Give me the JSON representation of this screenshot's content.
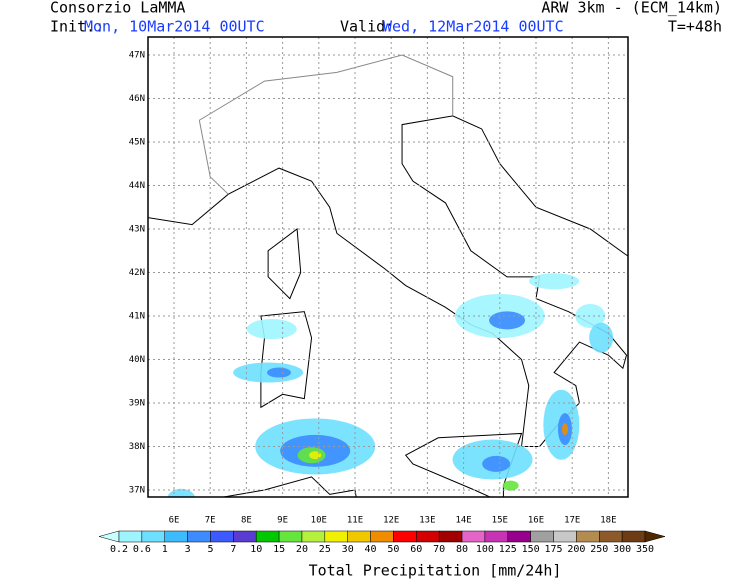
{
  "header": {
    "title": "Consorzio LaMMA",
    "init_label": "Init.:",
    "init_time": "Mon, 10Mar2014 00UTC",
    "valid_label": "Valid:",
    "valid_time": "Wed, 12Mar2014 00UTC",
    "model": "ARW 3km - (ECM_14km)",
    "lead_time": "T=+48h"
  },
  "map": {
    "lat_ticks": [
      "47N",
      "46N",
      "45N",
      "44N",
      "43N",
      "42N",
      "41N",
      "40N",
      "39N",
      "38N",
      "37N"
    ],
    "lon_ticks": [
      "6E",
      "7E",
      "8E",
      "9E",
      "10E",
      "11E",
      "12E",
      "13E",
      "14E",
      "15E",
      "16E",
      "17E",
      "18E"
    ]
  },
  "legend": {
    "title": "Total Precipitation [mm/24h]",
    "levels": [
      "0.2",
      "0.6",
      "1",
      "3",
      "5",
      "7",
      "10",
      "15",
      "20",
      "25",
      "30",
      "40",
      "50",
      "60",
      "70",
      "80",
      "100",
      "125",
      "150",
      "175",
      "200",
      "250",
      "300",
      "350"
    ],
    "colors": [
      "#c8ffff",
      "#9ef5ff",
      "#6ee0ff",
      "#3cbcff",
      "#3c8cff",
      "#3c5aff",
      "#5a3cd2",
      "#00c800",
      "#64e63c",
      "#b4f03c",
      "#f0f000",
      "#f0c800",
      "#f08c00",
      "#ff0000",
      "#d20000",
      "#a00000",
      "#e664c8",
      "#c832b4",
      "#96008c",
      "#a0a0a0",
      "#c8c8c8",
      "#b48c50",
      "#8c5a28",
      "#6e3c14",
      "#502800"
    ]
  }
}
